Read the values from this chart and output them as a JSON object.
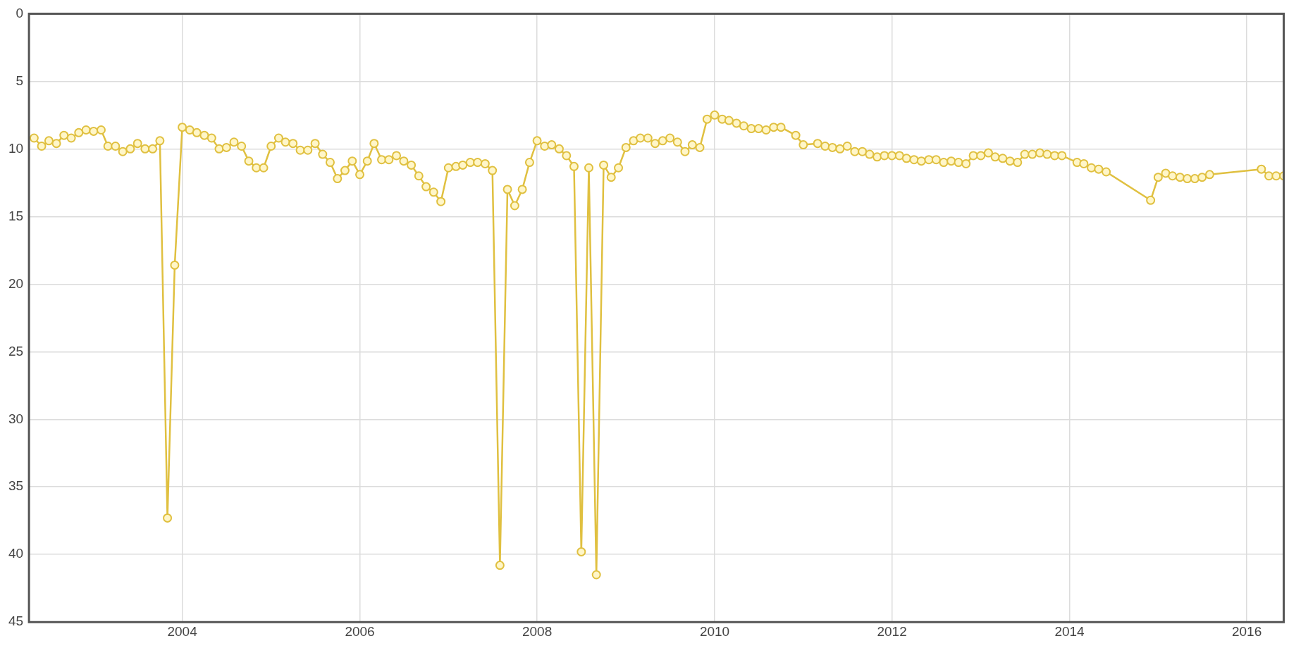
{
  "chart_data": {
    "type": "line",
    "x": [
      "2002-05",
      "2002-06",
      "2002-07",
      "2002-08",
      "2002-09",
      "2002-10",
      "2002-11",
      "2002-12",
      "2003-01",
      "2003-02",
      "2003-03",
      "2003-04",
      "2003-05",
      "2003-06",
      "2003-07",
      "2003-08",
      "2003-09",
      "2003-10",
      "2003-11",
      "2003-12",
      "2004-01",
      "2004-02",
      "2004-03",
      "2004-04",
      "2004-05",
      "2004-06",
      "2004-07",
      "2004-08",
      "2004-09",
      "2004-10",
      "2004-11",
      "2004-12",
      "2005-01",
      "2005-02",
      "2005-03",
      "2005-04",
      "2005-05",
      "2005-06",
      "2005-07",
      "2005-08",
      "2005-09",
      "2005-10",
      "2005-11",
      "2005-12",
      "2006-01",
      "2006-02",
      "2006-03",
      "2006-04",
      "2006-05",
      "2006-06",
      "2006-07",
      "2006-08",
      "2006-09",
      "2006-10",
      "2006-11",
      "2006-12",
      "2007-01",
      "2007-02",
      "2007-03",
      "2007-04",
      "2007-05",
      "2007-06",
      "2007-07",
      "2007-08",
      "2007-09",
      "2007-10",
      "2007-11",
      "2007-12",
      "2008-01",
      "2008-02",
      "2008-03",
      "2008-04",
      "2008-05",
      "2008-06",
      "2008-07",
      "2008-08",
      "2008-09",
      "2008-10",
      "2008-11",
      "2008-12",
      "2009-01",
      "2009-02",
      "2009-03",
      "2009-04",
      "2009-05",
      "2009-06",
      "2009-07",
      "2009-08",
      "2009-09",
      "2009-10",
      "2009-11",
      "2009-12",
      "2010-01",
      "2010-02",
      "2010-03",
      "2010-04",
      "2010-05",
      "2010-06",
      "2010-07",
      "2010-08",
      "2010-09",
      "2010-10",
      "2010-12",
      "2011-01",
      "2011-03",
      "2011-04",
      "2011-05",
      "2011-06",
      "2011-07",
      "2011-08",
      "2011-09",
      "2011-10",
      "2011-11",
      "2011-12",
      "2012-01",
      "2012-02",
      "2012-03",
      "2012-04",
      "2012-05",
      "2012-06",
      "2012-07",
      "2012-08",
      "2012-09",
      "2012-10",
      "2012-11",
      "2012-12",
      "2013-01",
      "2013-02",
      "2013-03",
      "2013-04",
      "2013-05",
      "2013-06",
      "2013-07",
      "2013-08",
      "2013-09",
      "2013-10",
      "2013-11",
      "2013-12",
      "2014-02",
      "2014-03",
      "2014-04",
      "2014-05",
      "2014-06",
      "2014-12",
      "2015-01",
      "2015-02",
      "2015-03",
      "2015-04",
      "2015-05",
      "2015-06",
      "2015-07",
      "2015-08",
      "2016-03",
      "2016-04",
      "2016-05",
      "2016-06"
    ],
    "series": [
      {
        "color": "#e0c040",
        "values": [
          9.2,
          9.8,
          9.4,
          9.6,
          9.0,
          9.2,
          8.8,
          8.6,
          8.7,
          8.6,
          9.8,
          9.8,
          10.2,
          10.0,
          9.6,
          10.0,
          10.0,
          9.4,
          37.3,
          18.6,
          8.4,
          8.6,
          8.8,
          9.0,
          9.2,
          10.0,
          9.9,
          9.5,
          9.8,
          10.9,
          11.4,
          11.4,
          9.8,
          9.2,
          9.5,
          9.6,
          10.1,
          10.1,
          9.6,
          10.4,
          11.0,
          12.2,
          11.6,
          10.9,
          11.9,
          10.9,
          9.6,
          10.8,
          10.8,
          10.5,
          10.9,
          11.2,
          12.0,
          12.8,
          13.2,
          13.9,
          11.4,
          11.3,
          11.2,
          11.0,
          11.0,
          11.1,
          11.6,
          40.8,
          13.0,
          14.2,
          13.0,
          11.0,
          9.4,
          9.8,
          9.7,
          10.0,
          10.5,
          11.3,
          39.8,
          11.4,
          41.5,
          11.2,
          12.1,
          11.4,
          9.9,
          9.4,
          9.2,
          9.2,
          9.6,
          9.4,
          9.2,
          9.5,
          10.2,
          9.7,
          9.9,
          7.8,
          7.5,
          7.8,
          7.9,
          8.1,
          8.3,
          8.5,
          8.5,
          8.6,
          8.4,
          8.4,
          9.0,
          9.7,
          9.6,
          9.8,
          9.9,
          10.0,
          9.8,
          10.2,
          10.2,
          10.4,
          10.6,
          10.5,
          10.5,
          10.5,
          10.7,
          10.8,
          10.9,
          10.8,
          10.8,
          11.0,
          10.9,
          11.0,
          11.1,
          10.5,
          10.5,
          10.3,
          10.6,
          10.7,
          10.9,
          11.0,
          10.4,
          10.4,
          10.3,
          10.4,
          10.5,
          10.5,
          11.0,
          11.1,
          11.4,
          11.5,
          11.7,
          13.8,
          12.1,
          11.8,
          12.0,
          12.1,
          12.2,
          12.2,
          12.1,
          11.9,
          11.5,
          12.0,
          12.0,
          12.0
        ]
      }
    ],
    "xlim": [
      "2002-04-10",
      "2016-06-01"
    ],
    "xticks": [
      "2004",
      "2006",
      "2008",
      "2010",
      "2012",
      "2014",
      "2016"
    ],
    "ylim": [
      45,
      0
    ],
    "yticks": [
      0,
      5,
      10,
      15,
      20,
      25,
      30,
      35,
      40,
      45
    ],
    "grid": true,
    "legend": false,
    "marker": "circle",
    "line_style": "solid"
  }
}
